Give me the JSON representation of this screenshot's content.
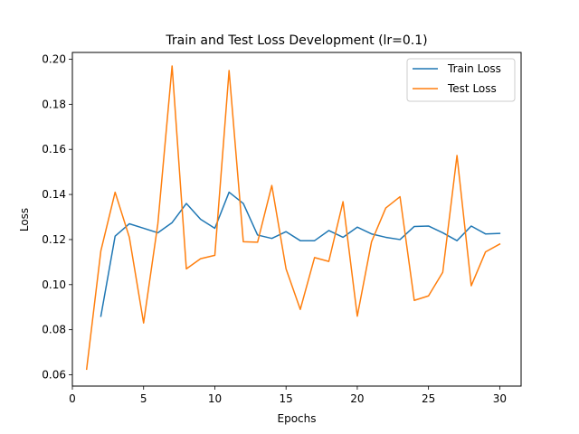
{
  "chart_data": {
    "type": "line",
    "title": "Train and Test Loss Development (lr=0.1)",
    "xlabel": "Epochs",
    "ylabel": "Loss",
    "xlim": [
      0,
      31.5
    ],
    "ylim": [
      0.055,
      0.203
    ],
    "xticks": [
      0,
      5,
      10,
      15,
      20,
      25,
      30
    ],
    "yticks": [
      0.06,
      0.08,
      0.1,
      0.12,
      0.14,
      0.16,
      0.18,
      0.2
    ],
    "ytick_labels": [
      "0.06",
      "0.08",
      "0.10",
      "0.12",
      "0.14",
      "0.16",
      "0.18",
      "0.20"
    ],
    "grid": false,
    "legend_position": "top-right",
    "series": [
      {
        "name": "Train Loss",
        "color": "#1f77b4",
        "x": [
          2,
          3,
          4,
          5,
          6,
          7,
          8,
          9,
          10,
          11,
          12,
          13,
          14,
          15,
          16,
          17,
          18,
          19,
          20,
          21,
          22,
          23,
          24,
          25,
          26,
          27,
          28,
          29,
          30
        ],
        "values": [
          0.086,
          0.1215,
          0.127,
          0.125,
          0.123,
          0.1275,
          0.136,
          0.129,
          0.125,
          0.141,
          0.136,
          0.122,
          0.1205,
          0.1235,
          0.1195,
          0.1195,
          0.124,
          0.121,
          0.1255,
          0.1225,
          0.121,
          0.12,
          0.1258,
          0.126,
          0.123,
          0.1195,
          0.126,
          0.1225,
          0.1227
        ]
      },
      {
        "name": "Test Loss",
        "color": "#ff7f0e",
        "x": [
          1,
          2,
          3,
          4,
          5,
          6,
          7,
          8,
          9,
          10,
          11,
          12,
          13,
          14,
          15,
          16,
          17,
          18,
          19,
          20,
          21,
          22,
          23,
          24,
          25,
          26,
          27,
          28,
          29,
          30
        ],
        "values": [
          0.0625,
          0.115,
          0.141,
          0.121,
          0.083,
          0.127,
          0.197,
          0.107,
          0.1115,
          0.113,
          0.195,
          0.119,
          0.1188,
          0.144,
          0.107,
          0.089,
          0.112,
          0.1103,
          0.1368,
          0.086,
          0.119,
          0.134,
          0.139,
          0.093,
          0.095,
          0.1055,
          0.1573,
          0.0995,
          0.1145,
          0.118
        ]
      }
    ]
  }
}
